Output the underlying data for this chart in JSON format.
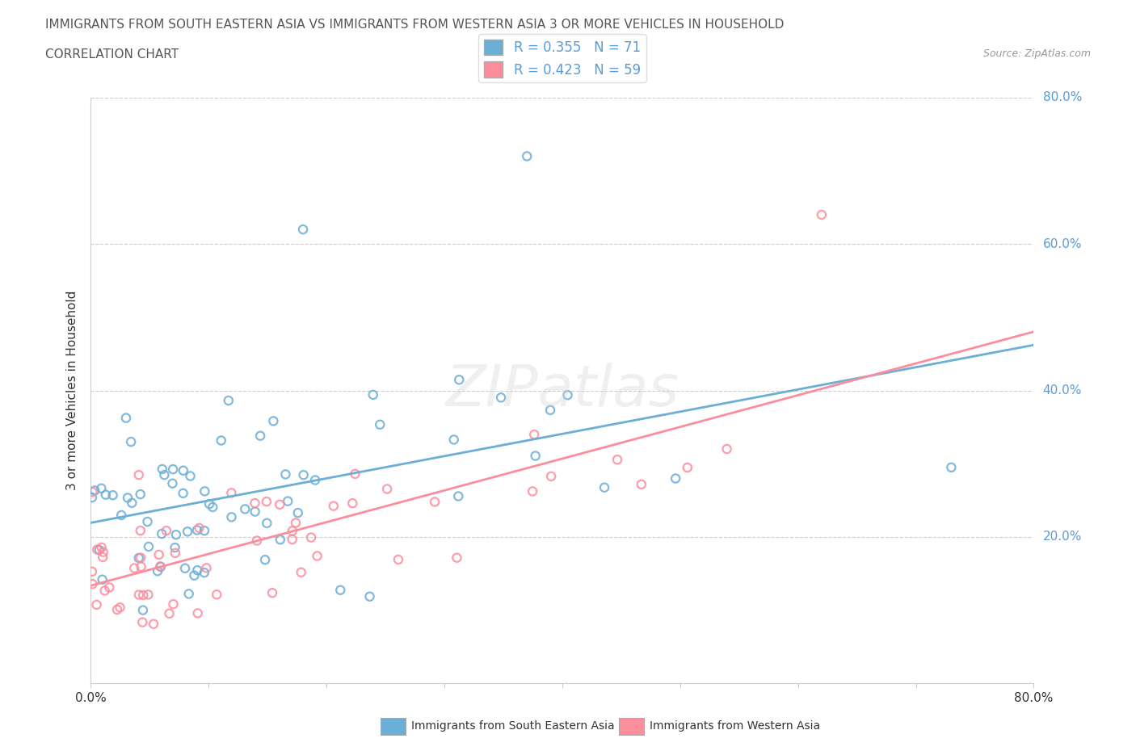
{
  "title_line1": "IMMIGRANTS FROM SOUTH EASTERN ASIA VS IMMIGRANTS FROM WESTERN ASIA 3 OR MORE VEHICLES IN HOUSEHOLD",
  "title_line2": "CORRELATION CHART",
  "source_text": "Source: ZipAtlas.com",
  "ylabel": "3 or more Vehicles in Household",
  "xlim": [
    0.0,
    0.8
  ],
  "ylim": [
    0.0,
    0.8
  ],
  "ytick_vals": [
    0.2,
    0.4,
    0.6,
    0.8
  ],
  "ytick_labels": [
    "20.0%",
    "40.0%",
    "60.0%",
    "80.0%"
  ],
  "series1_color": "#6baed6",
  "series2_color": "#fc8d9c",
  "series1_label": "Immigrants from South Eastern Asia",
  "series2_label": "Immigrants from Western Asia",
  "R1": 0.355,
  "N1": 71,
  "R2": 0.423,
  "N2": 59,
  "watermark": "ZIPatlas",
  "background_color": "#ffffff",
  "grid_color": "#cccccc",
  "title_color": "#555555",
  "label_color": "#5b9bd5",
  "tick_color": "#333333"
}
